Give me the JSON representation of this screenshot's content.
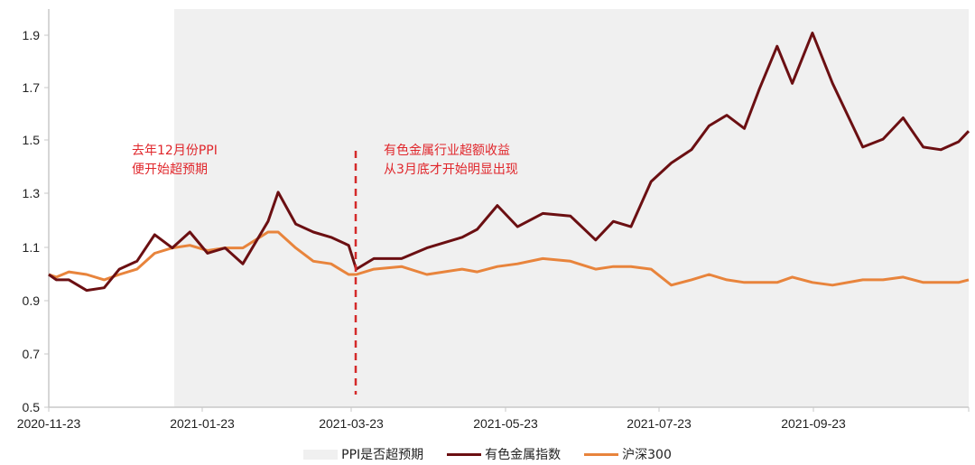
{
  "chart_data": {
    "type": "line",
    "title": "",
    "xlabel": "",
    "ylabel": "",
    "ylim": [
      0.5,
      2.0
    ],
    "yticks": [
      "0.5",
      "0.7",
      "0.9",
      "1.1",
      "1.3",
      "1.5",
      "1.7",
      "1.9"
    ],
    "xticks": [
      "2020-11-23",
      "2021-01-23",
      "2021-03-23",
      "2021-05-23",
      "2021-07-23",
      "2021-09-23"
    ],
    "grid": false,
    "legend_position": "bottom",
    "shaded_region": {
      "name": "PPI是否超预期",
      "start": "2020-12-31",
      "end": "2021-11-23",
      "color": "#f0f0f0"
    },
    "reference_line": {
      "date": "2021-03-25",
      "style": "dashed",
      "color": "#d42a2a"
    },
    "annotations": [
      {
        "lines": [
          "去年12月份PPI",
          "便开始超预期"
        ],
        "color": "#e0262b"
      },
      {
        "lines": [
          "有色金属行业超额收益",
          "从3月底才开始明显出现"
        ],
        "color": "#e0262b"
      }
    ],
    "series": [
      {
        "name": "有色金属指数",
        "color": "#6b0f12",
        "x": [
          "2020-11-23",
          "2020-11-26",
          "2020-12-01",
          "2020-12-08",
          "2020-12-15",
          "2020-12-21",
          "2020-12-28",
          "2021-01-04",
          "2021-01-11",
          "2021-01-18",
          "2021-01-25",
          "2021-02-01",
          "2021-02-08",
          "2021-02-18",
          "2021-02-22",
          "2021-03-01",
          "2021-03-08",
          "2021-03-15",
          "2021-03-22",
          "2021-03-25",
          "2021-04-01",
          "2021-04-12",
          "2021-04-22",
          "2021-05-06",
          "2021-05-12",
          "2021-05-20",
          "2021-05-28",
          "2021-06-07",
          "2021-06-18",
          "2021-06-28",
          "2021-07-05",
          "2021-07-12",
          "2021-07-20",
          "2021-07-28",
          "2021-08-05",
          "2021-08-12",
          "2021-08-19",
          "2021-08-26",
          "2021-09-01",
          "2021-09-08",
          "2021-09-14",
          "2021-09-22",
          "2021-09-30",
          "2021-10-12",
          "2021-10-20",
          "2021-10-28",
          "2021-11-05",
          "2021-11-12",
          "2021-11-19",
          "2021-11-23"
        ],
        "values": [
          1.0,
          0.98,
          0.98,
          0.94,
          0.95,
          1.02,
          1.05,
          1.15,
          1.1,
          1.16,
          1.08,
          1.1,
          1.04,
          1.2,
          1.31,
          1.19,
          1.16,
          1.14,
          1.11,
          1.02,
          1.06,
          1.06,
          1.1,
          1.14,
          1.17,
          1.26,
          1.18,
          1.23,
          1.22,
          1.13,
          1.2,
          1.18,
          1.35,
          1.42,
          1.47,
          1.56,
          1.6,
          1.55,
          1.7,
          1.86,
          1.72,
          1.91,
          1.72,
          1.48,
          1.51,
          1.59,
          1.48,
          1.47,
          1.5,
          1.54
        ]
      },
      {
        "name": "沪深300",
        "color": "#e8843c",
        "x": [
          "2020-11-23",
          "2020-11-26",
          "2020-12-01",
          "2020-12-08",
          "2020-12-15",
          "2020-12-21",
          "2020-12-28",
          "2021-01-04",
          "2021-01-11",
          "2021-01-18",
          "2021-01-25",
          "2021-02-01",
          "2021-02-08",
          "2021-02-18",
          "2021-02-22",
          "2021-03-01",
          "2021-03-08",
          "2021-03-15",
          "2021-03-22",
          "2021-03-25",
          "2021-04-01",
          "2021-04-12",
          "2021-04-22",
          "2021-05-06",
          "2021-05-12",
          "2021-05-20",
          "2021-05-28",
          "2021-06-07",
          "2021-06-18",
          "2021-06-28",
          "2021-07-05",
          "2021-07-12",
          "2021-07-20",
          "2021-07-28",
          "2021-08-05",
          "2021-08-12",
          "2021-08-19",
          "2021-08-26",
          "2021-09-01",
          "2021-09-08",
          "2021-09-14",
          "2021-09-22",
          "2021-09-30",
          "2021-10-12",
          "2021-10-20",
          "2021-10-28",
          "2021-11-05",
          "2021-11-12",
          "2021-11-19",
          "2021-11-23"
        ],
        "values": [
          1.0,
          0.99,
          1.01,
          1.0,
          0.98,
          1.0,
          1.02,
          1.08,
          1.1,
          1.11,
          1.09,
          1.1,
          1.1,
          1.16,
          1.16,
          1.1,
          1.05,
          1.04,
          1.0,
          1.0,
          1.02,
          1.03,
          1.0,
          1.02,
          1.01,
          1.03,
          1.04,
          1.06,
          1.05,
          1.02,
          1.03,
          1.03,
          1.02,
          0.96,
          0.98,
          1.0,
          0.98,
          0.97,
          0.97,
          0.97,
          0.99,
          0.97,
          0.96,
          0.98,
          0.98,
          0.99,
          0.97,
          0.97,
          0.97,
          0.98
        ]
      }
    ]
  },
  "axis": {
    "y_labels": [
      "1.9",
      "1.7",
      "1.5",
      "1.3",
      "1.1",
      "0.9",
      "0.7",
      "0.5"
    ],
    "x_labels": [
      "2020-11-23",
      "2021-01-23",
      "2021-03-23",
      "2021-05-23",
      "2021-07-23",
      "2021-09-23"
    ]
  },
  "annotations": {
    "left": {
      "line1": "去年12月份PPI",
      "line2": "便开始超预期"
    },
    "right": {
      "line1": "有色金属行业超额收益",
      "line2": "从3月底才开始明显出现"
    }
  },
  "legend": {
    "items": [
      {
        "label": "PPI是否超预期",
        "color": "#f0f0f0"
      },
      {
        "label": "有色金属指数",
        "color": "#6b0f12"
      },
      {
        "label": "沪深300",
        "color": "#e8843c"
      }
    ]
  }
}
